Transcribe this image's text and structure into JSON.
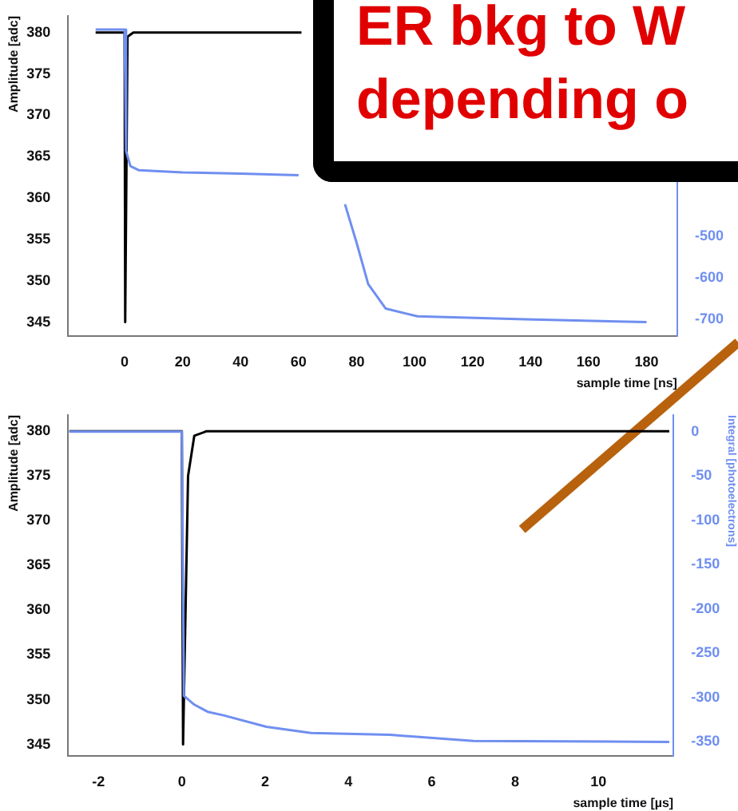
{
  "chart_data": [
    {
      "type": "line",
      "xlabel": "sample time [ns]",
      "ylabel": "Amplitude [adc]",
      "xlim": [
        -19.5,
        190.6
      ],
      "xticks": [
        0,
        20,
        40,
        60,
        80,
        100,
        120,
        140,
        160,
        180
      ],
      "ylim": [
        343.3,
        382
      ],
      "yticks": [
        345,
        350,
        355,
        360,
        365,
        370,
        375,
        380
      ],
      "y2lim": [
        -741,
        33
      ],
      "y2ticks": [
        -500,
        -600,
        -700
      ],
      "grid": false,
      "legend": false,
      "marker": "none",
      "line_style": "solid",
      "annotations": [
        "ER bkg to W",
        "depending o"
      ],
      "series": [
        {
          "color": "#6f8ff0",
          "axis": "y2",
          "x": [
            -10,
            0,
            0.5,
            2,
            5,
            20,
            40,
            60,
            62,
            76,
            80,
            84,
            90,
            101,
            138,
            180
          ],
          "values": [
            0,
            0,
            -293,
            -330,
            -340,
            -345,
            -348,
            -352,
            null,
            -422,
            -515,
            -615,
            -674,
            -693,
            -700,
            -707
          ]
        },
        {
          "color": "#000000",
          "x": [
            -10,
            0,
            0.2,
            1,
            3,
            61
          ],
          "values": [
            380,
            380,
            345,
            379.5,
            380,
            380
          ]
        }
      ]
    },
    {
      "type": "line",
      "xlabel": "sample time [µs]",
      "ylabel": "Amplitude [adc]",
      "y2label": "Integral [photoelectrons]",
      "xlim": [
        -2.73,
        11.8
      ],
      "xticks": [
        -2,
        0,
        2,
        4,
        6,
        8,
        10
      ],
      "ylim": [
        343.7,
        381.8
      ],
      "yticks": [
        345,
        350,
        355,
        360,
        365,
        370,
        375,
        380
      ],
      "y2lim": [
        -366,
        18.6
      ],
      "y2ticks": [
        0,
        -50,
        -100,
        -150,
        -200,
        -250,
        -300,
        -350
      ],
      "grid": false,
      "legend": false,
      "marker": "none",
      "line_style": "solid",
      "series": [
        {
          "color": "#6f8ff0",
          "axis": "y2",
          "x": [
            -2.7,
            0,
            0.05,
            0.3,
            0.62,
            1,
            2.03,
            3.1,
            5,
            7,
            11.7
          ],
          "values": [
            0,
            0,
            -298,
            -308,
            -316,
            -320,
            -333,
            -340,
            -342,
            -349,
            -350
          ]
        },
        {
          "color": "#000000",
          "x": [
            -2.7,
            0,
            0.03,
            0.15,
            0.3,
            0.6,
            11.7
          ],
          "values": [
            380,
            380,
            345,
            375,
            379.5,
            380,
            380
          ]
        }
      ]
    }
  ]
}
